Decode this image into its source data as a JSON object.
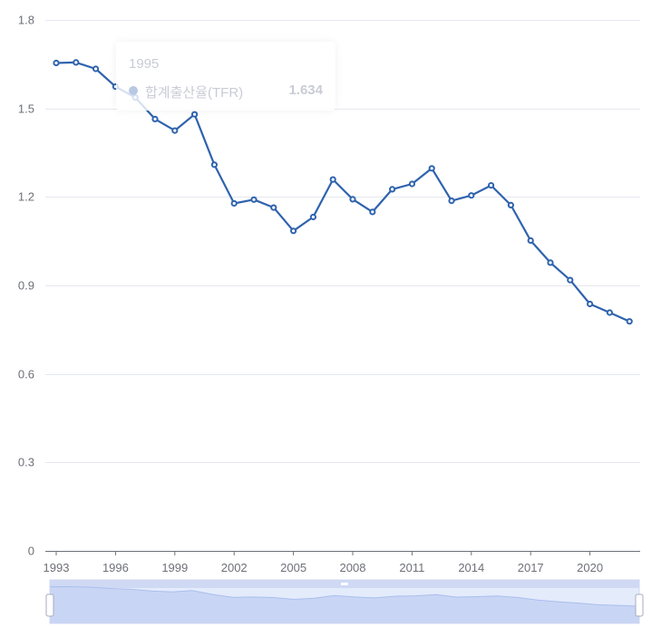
{
  "chart_data": {
    "type": "line",
    "title": "",
    "xlabel": "",
    "ylabel": "",
    "x": [
      1993,
      1994,
      1995,
      1996,
      1997,
      1998,
      1999,
      2000,
      2001,
      2002,
      2003,
      2004,
      2005,
      2006,
      2007,
      2008,
      2009,
      2010,
      2011,
      2012,
      2013,
      2014,
      2015,
      2016,
      2017,
      2018,
      2019,
      2020,
      2021,
      2022
    ],
    "series": [
      {
        "name": "합계출산율(TFR)",
        "color": "#2f63ad",
        "values": [
          1.654,
          1.656,
          1.634,
          1.574,
          1.537,
          1.464,
          1.425,
          1.48,
          1.309,
          1.178,
          1.191,
          1.164,
          1.085,
          1.132,
          1.259,
          1.192,
          1.149,
          1.226,
          1.244,
          1.297,
          1.187,
          1.205,
          1.239,
          1.172,
          1.052,
          0.977,
          0.918,
          0.837,
          0.808,
          0.778
        ]
      }
    ],
    "ylim": [
      0,
      1.8
    ],
    "yticks": [
      "0",
      "0.3",
      "0.6",
      "0.9",
      "1.2",
      "1.5",
      "1.8"
    ],
    "xticks": [
      "1993",
      "1996",
      "1999",
      "2002",
      "2005",
      "2008",
      "2011",
      "2014",
      "2017",
      "2020"
    ],
    "grid": true,
    "legend": "none",
    "tooltip": {
      "year": "1995",
      "series": "합계출산율(TFR)",
      "value": "1.634"
    },
    "data_zoom": "slider-bottom"
  }
}
